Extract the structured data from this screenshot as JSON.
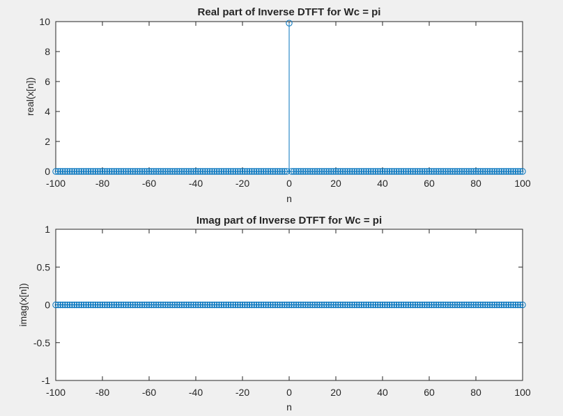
{
  "colors": {
    "figure_background": "#f0f0f0",
    "axes_background": "#ffffff",
    "axes_edge": "#262626",
    "series": "#0072bd"
  },
  "chart_data": [
    {
      "type": "stem",
      "title": "Real part of Inverse DTFT for Wc = pi",
      "xlabel": "n",
      "ylabel": "real(x[n])",
      "xlim": [
        -100,
        100
      ],
      "ylim": [
        0,
        10
      ],
      "xticks": [
        -100,
        -80,
        -60,
        -40,
        -20,
        0,
        20,
        40,
        60,
        80,
        100
      ],
      "yticks": [
        0,
        2,
        4,
        6,
        8,
        10
      ],
      "x_range": {
        "start": -100,
        "end": 100,
        "step": 1
      },
      "baseline_value": 0,
      "nonzero_points": [
        {
          "x": 0,
          "y": 9.9
        }
      ],
      "marker": "circle",
      "grid": false,
      "legend": "none"
    },
    {
      "type": "stem",
      "title": "Imag part of Inverse DTFT for Wc = pi",
      "xlabel": "n",
      "ylabel": "imag(x[n])",
      "xlim": [
        -100,
        100
      ],
      "ylim": [
        -1,
        1
      ],
      "xticks": [
        -100,
        -80,
        -60,
        -40,
        -20,
        0,
        20,
        40,
        60,
        80,
        100
      ],
      "yticks": [
        -1,
        -0.5,
        0,
        0.5,
        1
      ],
      "x_range": {
        "start": -100,
        "end": 100,
        "step": 1
      },
      "baseline_value": 0,
      "nonzero_points": [],
      "marker": "circle",
      "grid": false,
      "legend": "none"
    }
  ]
}
